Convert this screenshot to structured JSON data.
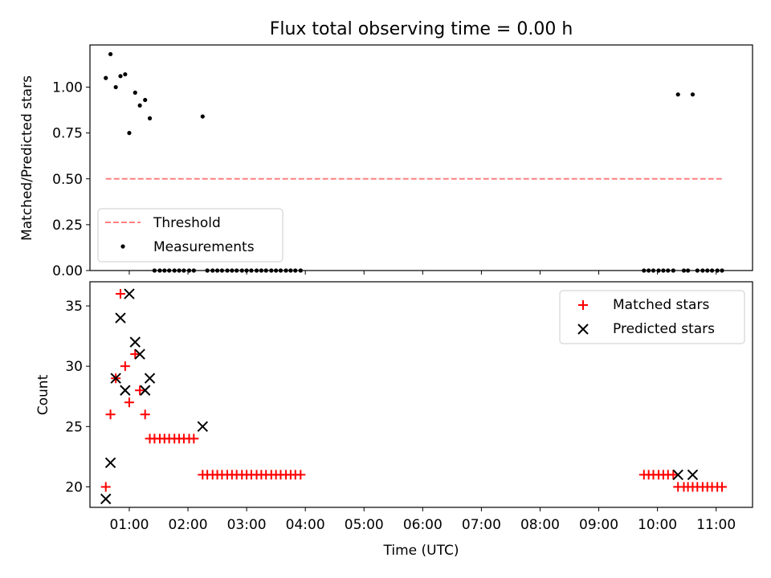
{
  "chart_data": [
    {
      "type": "scatter",
      "title": "Flux total observing time = 0.00 h",
      "xlabel": "",
      "ylabel": "Matched/Predicted stars",
      "xlim": [
        0.33,
        11.62
      ],
      "ylim": [
        0.0,
        1.23
      ],
      "yticks": [
        0.0,
        0.25,
        0.5,
        0.75,
        1.0
      ],
      "ytick_labels": [
        "0.00",
        "0.25",
        "0.50",
        "0.75",
        "1.00"
      ],
      "xticks": [
        1,
        2,
        3,
        4,
        5,
        6,
        7,
        8,
        9,
        10,
        11
      ],
      "xtick_labels_shown": false,
      "grid": false,
      "legend_position": "lower-left",
      "threshold": {
        "name": "Threshold",
        "y": 0.5,
        "x_range": [
          0.6,
          11.1
        ],
        "color": "#ff7f7f",
        "style": "dashed"
      },
      "series": [
        {
          "name": "Measurements",
          "color": "#000000",
          "marker": "dot",
          "x": [
            0.6,
            0.68,
            0.77,
            0.85,
            0.93,
            1.0,
            1.1,
            1.18,
            1.27,
            1.35,
            2.25,
            10.35,
            10.6
          ],
          "y": [
            1.05,
            1.18,
            1.0,
            1.06,
            1.07,
            0.75,
            0.97,
            0.9,
            0.93,
            0.83,
            0.84,
            0.96,
            0.96
          ]
        },
        {
          "name": "",
          "color": "#000000",
          "marker": "dot",
          "x": [
            1.43,
            1.52,
            1.6,
            1.68,
            1.77,
            1.85,
            1.93,
            2.02,
            2.1,
            2.33,
            2.42,
            2.5,
            2.58,
            2.67,
            2.75,
            2.83,
            2.92,
            3.0,
            3.08,
            3.17,
            3.25,
            3.33,
            3.42,
            3.5,
            3.58,
            3.67,
            3.75,
            3.83,
            3.92,
            9.77,
            9.85,
            9.93,
            10.02,
            10.1,
            10.18,
            10.27,
            10.45,
            10.52,
            10.68,
            10.77,
            10.85,
            10.93,
            11.02,
            11.1
          ],
          "y": [
            0.0,
            0.0,
            0.0,
            0.0,
            0.0,
            0.0,
            0.0,
            0.0,
            0.0,
            0.0,
            0.0,
            0.0,
            0.0,
            0.0,
            0.0,
            0.0,
            0.0,
            0.0,
            0.0,
            0.0,
            0.0,
            0.0,
            0.0,
            0.0,
            0.0,
            0.0,
            0.0,
            0.0,
            0.0,
            0.0,
            0.0,
            0.0,
            0.0,
            0.0,
            0.0,
            0.0,
            0.0,
            0.0,
            0.0,
            0.0,
            0.0,
            0.0,
            0.0,
            0.0
          ]
        }
      ]
    },
    {
      "type": "scatter",
      "title": "",
      "xlabel": "Time (UTC)",
      "ylabel": "Count",
      "xlim": [
        0.33,
        11.62
      ],
      "ylim": [
        18.3,
        37.0
      ],
      "yticks": [
        20,
        25,
        30,
        35
      ],
      "ytick_labels": [
        "20",
        "25",
        "30",
        "35"
      ],
      "xticks": [
        1,
        2,
        3,
        4,
        5,
        6,
        7,
        8,
        9,
        10,
        11
      ],
      "xtick_labels": [
        "01:00",
        "02:00",
        "03:00",
        "04:00",
        "05:00",
        "06:00",
        "07:00",
        "08:00",
        "09:00",
        "10:00",
        "11:00"
      ],
      "grid": false,
      "legend_position": "upper-right",
      "series": [
        {
          "name": "Matched stars",
          "color": "#ff0000",
          "marker": "plus",
          "x": [
            0.6,
            0.68,
            0.77,
            0.85,
            0.93,
            1.0,
            1.1,
            1.18,
            1.27,
            1.35,
            1.43,
            1.52,
            1.6,
            1.68,
            1.77,
            1.85,
            1.93,
            2.02,
            2.1,
            2.25,
            2.33,
            2.42,
            2.5,
            2.58,
            2.67,
            2.75,
            2.83,
            2.92,
            3.0,
            3.08,
            3.17,
            3.25,
            3.33,
            3.42,
            3.5,
            3.58,
            3.67,
            3.75,
            3.83,
            3.92,
            9.77,
            9.85,
            9.93,
            10.02,
            10.1,
            10.18,
            10.27,
            10.35,
            10.45,
            10.52,
            10.6,
            10.68,
            10.77,
            10.85,
            10.93,
            11.02,
            11.1
          ],
          "y": [
            20,
            26,
            29,
            36,
            30,
            27,
            31,
            28,
            26,
            24,
            24,
            24,
            24,
            24,
            24,
            24,
            24,
            24,
            24,
            21,
            21,
            21,
            21,
            21,
            21,
            21,
            21,
            21,
            21,
            21,
            21,
            21,
            21,
            21,
            21,
            21,
            21,
            21,
            21,
            21,
            21,
            21,
            21,
            21,
            21,
            21,
            21,
            20,
            20,
            20,
            20,
            20,
            20,
            20,
            20,
            20,
            20
          ]
        },
        {
          "name": "Predicted stars",
          "color": "#000000",
          "marker": "x",
          "x": [
            0.6,
            0.68,
            0.77,
            0.85,
            0.93,
            1.0,
            1.1,
            1.18,
            1.27,
            1.35,
            2.25,
            10.35,
            10.6
          ],
          "y": [
            19,
            22,
            29,
            34,
            28,
            36,
            32,
            31,
            28,
            29,
            25,
            21,
            21
          ]
        }
      ]
    }
  ]
}
